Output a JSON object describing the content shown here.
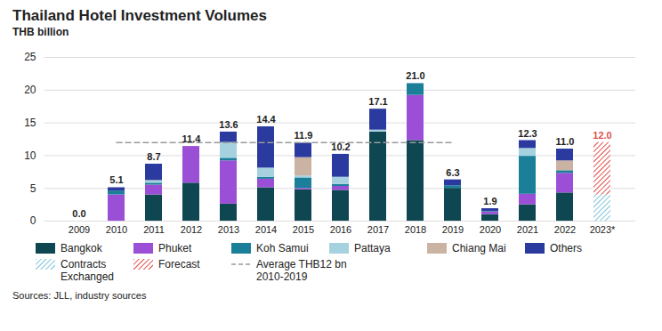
{
  "chart_data": {
    "type": "bar",
    "title": "Thailand Hotel Investment Volumes",
    "subtitle": "THB billion",
    "source": "Sources: JLL, industry sources",
    "stacked": true,
    "grid": true,
    "legend": "bottom",
    "categories": [
      "2009",
      "2010",
      "2011",
      "2012",
      "2013",
      "2014",
      "2015",
      "2016",
      "2017",
      "2018",
      "2019",
      "2020",
      "2021",
      "2022",
      "2023*"
    ],
    "series": [
      {
        "name": "Bangkok",
        "color": "#0e4652",
        "values": [
          0,
          0,
          4.0,
          5.8,
          2.6,
          5.1,
          4.8,
          4.7,
          13.6,
          12.3,
          5.0,
          1.0,
          2.5,
          4.3,
          0
        ]
      },
      {
        "name": "Phuket",
        "color": "#9b4fd6",
        "values": [
          0,
          4.0,
          1.5,
          5.6,
          6.6,
          1.3,
          0.2,
          0.6,
          0,
          6.9,
          0,
          0.4,
          1.6,
          3.0,
          0
        ]
      },
      {
        "name": "Koh Samui",
        "color": "#1b7f9a",
        "values": [
          0,
          0.6,
          0.3,
          0,
          0.4,
          0.3,
          1.6,
          0.3,
          0,
          1.8,
          0.4,
          0.1,
          5.8,
          0.4,
          0
        ]
      },
      {
        "name": "Pattaya",
        "color": "#a6d2df",
        "values": [
          0,
          0,
          0.4,
          0,
          2.4,
          1.4,
          0.3,
          1.1,
          0.3,
          0,
          0,
          0,
          1.2,
          0,
          0
        ]
      },
      {
        "name": "Chiang Mai",
        "color": "#cbb3a4",
        "values": [
          0,
          0,
          0,
          0,
          0,
          0,
          2.8,
          0,
          0,
          0,
          0,
          0,
          0,
          1.5,
          0
        ]
      },
      {
        "name": "Others",
        "color": "#2b3a9f",
        "values": [
          0,
          0.5,
          2.5,
          0,
          1.6,
          6.3,
          2.2,
          3.5,
          3.2,
          0,
          0.9,
          0.4,
          1.2,
          1.8,
          0
        ]
      },
      {
        "name": "Contracts Exchanged",
        "color": "#7cc3da",
        "line_style": "hatched",
        "values": [
          0,
          0,
          0,
          0,
          0,
          0,
          0,
          0,
          0,
          0,
          0,
          0,
          0,
          0,
          4.0
        ]
      },
      {
        "name": "Forecast",
        "color": "#e0504f",
        "line_style": "hatched",
        "values": [
          0,
          0,
          0,
          0,
          0,
          0,
          0,
          0,
          0,
          0,
          0,
          0,
          0,
          0,
          8.0
        ]
      }
    ],
    "totals": [
      0,
      5.1,
      8.7,
      11.4,
      13.6,
      14.4,
      11.9,
      10.2,
      17.1,
      21.0,
      6.3,
      1.9,
      12.3,
      11.0,
      12.0
    ],
    "total_labels": [
      "0.0",
      "5.1",
      "8.7",
      "11.4",
      "13.6",
      "14.4",
      "11.9",
      "10.2",
      "17.1",
      "21.0",
      "6.3",
      "1.9",
      "12.3",
      "11.0",
      "12.0"
    ],
    "average": {
      "name": "Average THB12 bn 2010-2019",
      "value": 12,
      "from": "2010",
      "to": "2019",
      "color": "#9a9a9a",
      "line_style": "dashed"
    },
    "ylim": [
      0,
      25
    ],
    "yticks": [
      0,
      5,
      10,
      15,
      20,
      25
    ]
  }
}
